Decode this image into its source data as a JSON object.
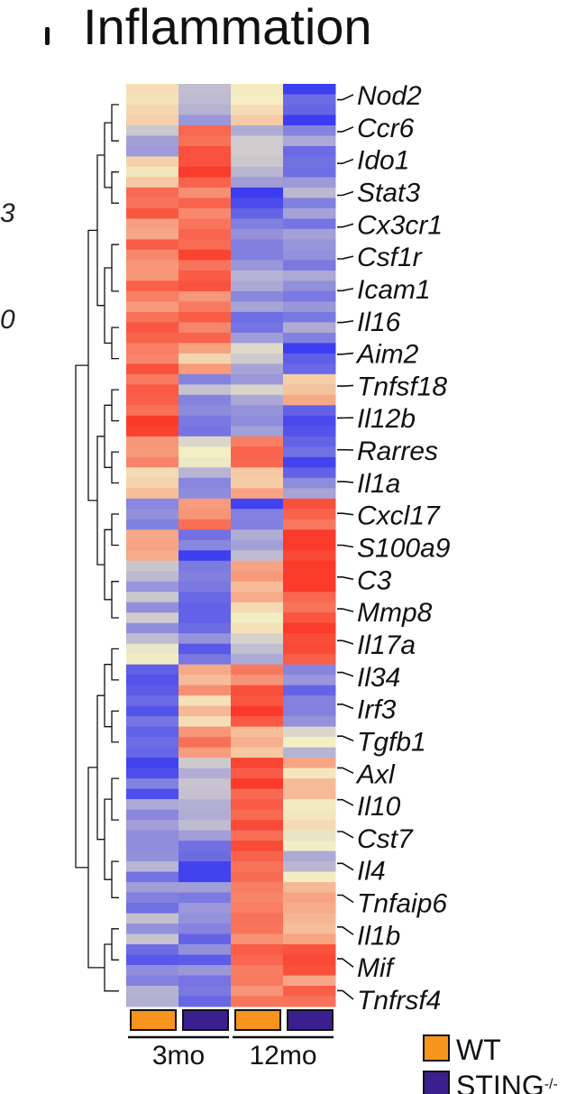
{
  "title": "Inflammation",
  "chart_data": {
    "type": "heatmap",
    "title": "Inflammation",
    "columns": [
      {
        "age": "3mo",
        "genotype": "WT"
      },
      {
        "age": "3mo",
        "genotype": "STING-/-"
      },
      {
        "age": "12mo",
        "genotype": "WT"
      },
      {
        "age": "12mo",
        "genotype": "STING-/-"
      }
    ],
    "column_groups": [
      "3mo",
      "12mo"
    ],
    "legend": [
      {
        "label": "WT",
        "color": "#f7941d"
      },
      {
        "label": "STING",
        "superscript": "-/-",
        "color": "#3b1f8e"
      }
    ],
    "color_scale": {
      "low": "#3c3cf0",
      "mid": "#f4efc4",
      "high": "#fa3a2a",
      "min": -1,
      "max": 1
    },
    "gene_labels": [
      "Nod2",
      "Ccr6",
      "Ido1",
      "Stat3",
      "Cx3cr1",
      "Csf1r",
      "Icam1",
      "Il16",
      "Aim2",
      "Tnfsf18",
      "Il12b",
      "Rarres",
      "Il1a",
      "Cxcl17",
      "S100a9",
      "C3",
      "Mmp8",
      "Il17a",
      "Il34",
      "Irf3",
      "Tgfb1",
      "Axl",
      "Il10",
      "Cst7",
      "Il4",
      "Tnfaip6",
      "Il1b",
      "Mif",
      "Tnfrsf4"
    ],
    "blocks": [
      {
        "rows": 4,
        "values": [
          0.1,
          -0.3,
          0.2,
          -0.9
        ]
      },
      {
        "rows": 3,
        "values": [
          -0.3,
          0.9,
          -0.4,
          -0.6
        ]
      },
      {
        "rows": 3,
        "values": [
          0.2,
          0.85,
          -0.3,
          -0.6
        ]
      },
      {
        "rows": 3,
        "values": [
          0.8,
          0.6,
          -0.9,
          -0.5
        ]
      },
      {
        "rows": 5,
        "values": [
          0.6,
          0.8,
          -0.6,
          -0.5
        ]
      },
      {
        "rows": 4,
        "values": [
          0.6,
          0.7,
          -0.5,
          -0.6
        ]
      },
      {
        "rows": 3,
        "values": [
          0.8,
          0.6,
          -0.5,
          -0.6
        ]
      },
      {
        "rows": 3,
        "values": [
          0.8,
          0.3,
          -0.3,
          -0.9
        ]
      },
      {
        "rows": 3,
        "values": [
          0.8,
          -0.4,
          -0.3,
          0.4
        ]
      },
      {
        "rows": 3,
        "values": [
          0.9,
          -0.5,
          -0.4,
          -0.7
        ]
      },
      {
        "rows": 3,
        "values": [
          0.5,
          -0.1,
          0.85,
          -0.9
        ]
      },
      {
        "rows": 3,
        "values": [
          0.3,
          -0.5,
          0.4,
          -0.6
        ]
      },
      {
        "rows": 3,
        "values": [
          -0.6,
          0.5,
          -0.8,
          0.7
        ]
      },
      {
        "rows": 3,
        "values": [
          0.4,
          -0.8,
          -0.5,
          0.9
        ]
      },
      {
        "rows": 4,
        "values": [
          -0.3,
          -0.6,
          0.3,
          0.9
        ]
      },
      {
        "rows": 3,
        "values": [
          -0.4,
          -0.8,
          0.2,
          0.9
        ]
      },
      {
        "rows": 3,
        "values": [
          -0.2,
          -0.7,
          -0.2,
          0.95
        ]
      },
      {
        "rows": 3,
        "values": [
          -0.8,
          0.5,
          0.7,
          -0.6
        ]
      },
      {
        "rows": 3,
        "values": [
          -0.7,
          0.2,
          0.9,
          -0.4
        ]
      },
      {
        "rows": 3,
        "values": [
          -0.9,
          0.5,
          0.4,
          -0.2
        ]
      },
      {
        "rows": 4,
        "values": [
          -0.8,
          -0.3,
          0.9,
          0.2
        ]
      },
      {
        "rows": 4,
        "values": [
          -0.6,
          -0.4,
          0.9,
          0.1
        ]
      },
      {
        "rows": 4,
        "values": [
          -0.5,
          -0.9,
          0.8,
          -0.2
        ]
      },
      {
        "rows": 3,
        "values": [
          -0.6,
          -0.5,
          0.6,
          0.5
        ]
      },
      {
        "rows": 3,
        "values": [
          -0.3,
          -0.6,
          0.7,
          0.5
        ]
      },
      {
        "rows": 3,
        "values": [
          -0.7,
          -0.6,
          0.6,
          0.7
        ]
      },
      {
        "rows": 3,
        "values": [
          -0.4,
          -0.6,
          0.6,
          0.6
        ]
      }
    ]
  }
}
